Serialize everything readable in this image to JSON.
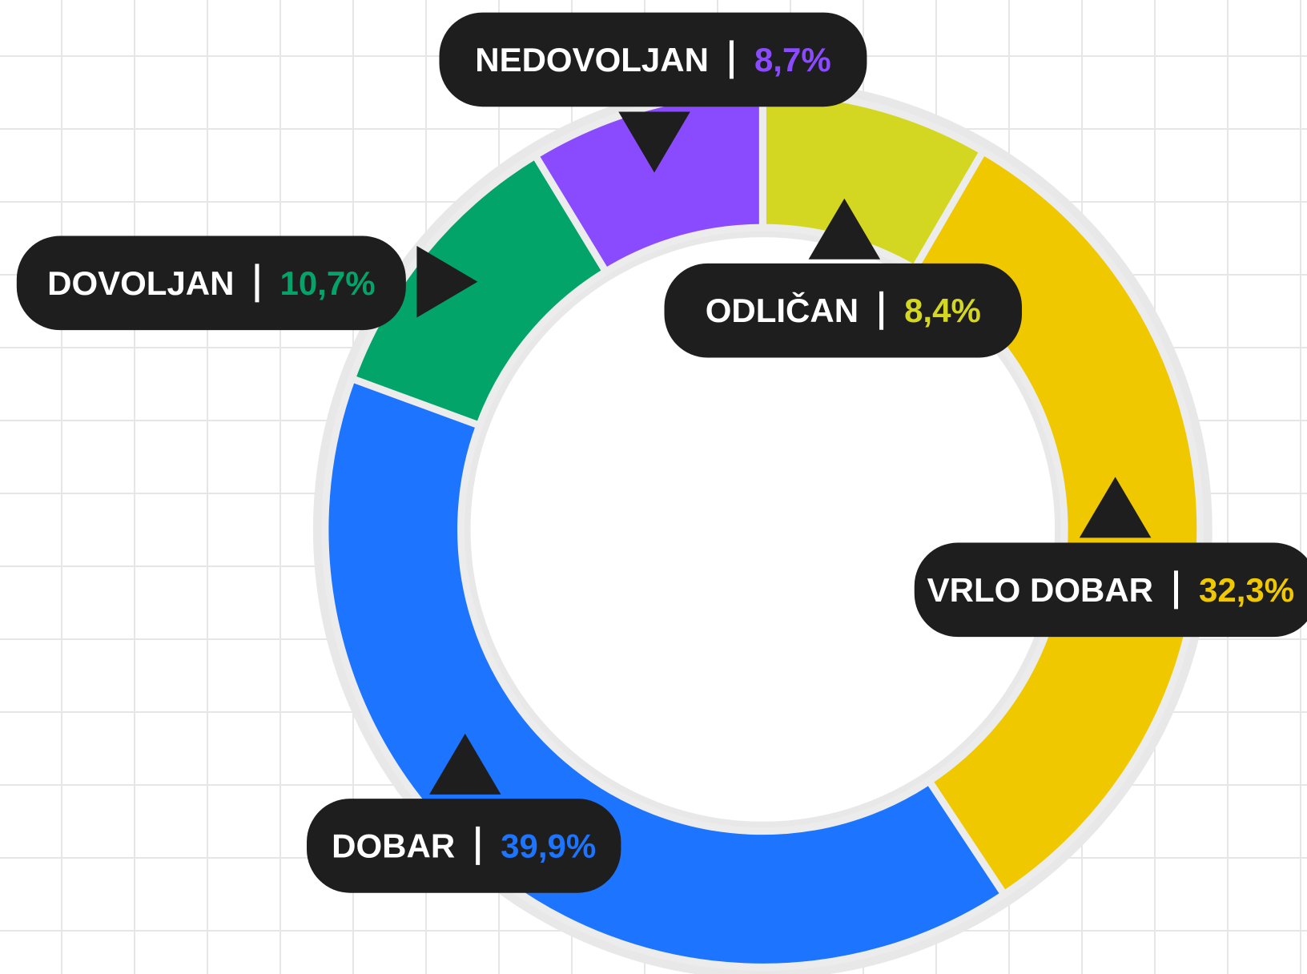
{
  "chart_data": {
    "type": "donut",
    "categories": [
      "ODLIČAN",
      "VRLO DOBAR",
      "DOBAR",
      "DOVOLJAN",
      "NEDOVOLJAN"
    ],
    "values": [
      8.4,
      32.3,
      39.9,
      10.7,
      8.7
    ],
    "value_labels": [
      "8,4%",
      "32,3%",
      "39,9%",
      "10,7%",
      "8,7%"
    ],
    "colors": [
      "#d4d722",
      "#f0c800",
      "#1c74ff",
      "#02a46a",
      "#8a4bff"
    ]
  }
}
